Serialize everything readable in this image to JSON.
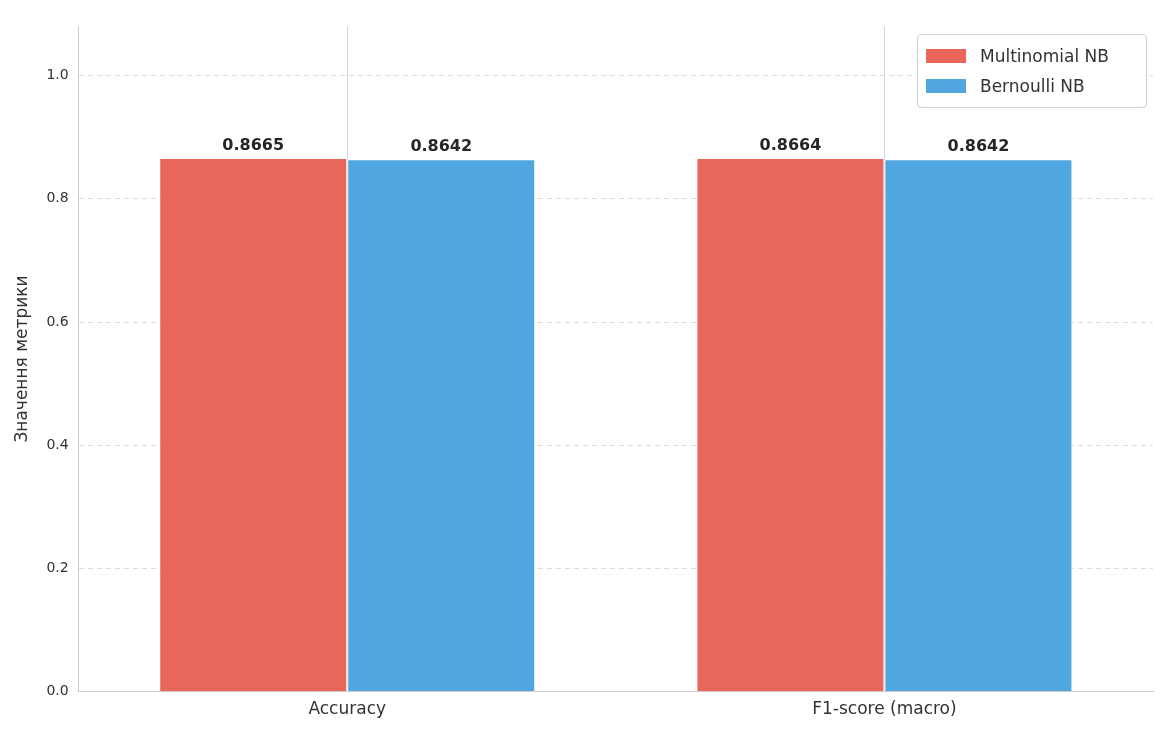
{
  "chart_data": {
    "type": "bar",
    "ylabel": "Значення метрики",
    "categories": [
      "Accuracy",
      "F1-score (macro)"
    ],
    "series": [
      {
        "name": "Multinomial NB",
        "color": "#e9665a",
        "values": [
          0.8665,
          0.8664
        ]
      },
      {
        "name": "Bernoulli NB",
        "color": "#50a6df",
        "values": [
          0.8642,
          0.8642
        ]
      }
    ],
    "ylim": [
      0,
      1.08
    ],
    "yticks": [
      {
        "value": 0,
        "label": "0.0"
      },
      0.2,
      0.4,
      0.6,
      0.8,
      {
        "value": 1,
        "label": "1.0"
      }
    ],
    "grid": true,
    "legend": "top right",
    "data_labels": true
  }
}
